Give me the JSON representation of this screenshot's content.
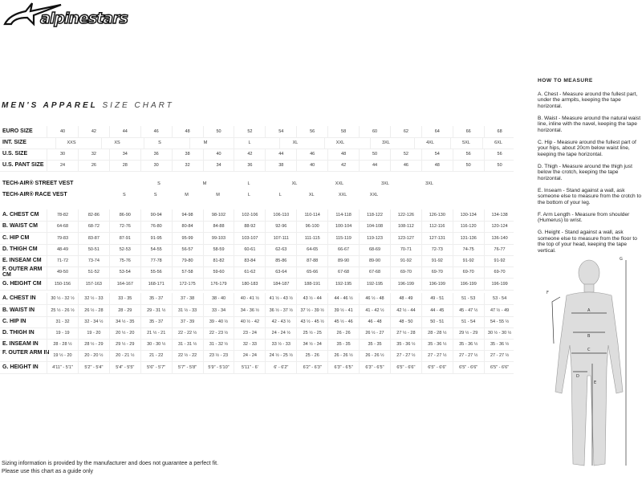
{
  "brand": "alpinestars",
  "title": {
    "bold": "MEN'S APPAREL",
    "light": "SIZE CHART"
  },
  "size_rows": [
    {
      "label": "EURO SIZE",
      "values": [
        "40",
        "42",
        "44",
        "46",
        "48",
        "50",
        "52",
        "54",
        "56",
        "58",
        "60",
        "62",
        "64",
        "66",
        "68"
      ]
    },
    {
      "label": "U.S. SIZE",
      "values": [
        "30",
        "32",
        "34",
        "36",
        "38",
        "40",
        "42",
        "44",
        "46",
        "48",
        "50",
        "52",
        "54",
        "56",
        "56"
      ]
    },
    {
      "label": "U.S. PANT SIZE",
      "values": [
        "24",
        "26",
        "28",
        "30",
        "32",
        "34",
        "36",
        "38",
        "40",
        "42",
        "44",
        "46",
        "48",
        "50",
        "50"
      ]
    }
  ],
  "int_size": {
    "label": "INT. SIZE",
    "values": [
      "XXS",
      "XS",
      "S",
      "M",
      "L",
      "XL",
      "XXL",
      "3XL",
      "4XL",
      "5XL",
      "6XL"
    ]
  },
  "street_vest": {
    "label": "TECH-AIR® STREET VEST",
    "values": [
      "S",
      "M",
      "L",
      "XL",
      "XXL",
      "3XL",
      "3XL"
    ]
  },
  "race_vest": {
    "label": "TECH-AIR® RACE VEST",
    "values": [
      "S",
      "S",
      "M",
      "M",
      "L",
      "L",
      "XL",
      "XXL",
      "XXL"
    ]
  },
  "cm_rows": [
    {
      "label": "A. CHEST CM",
      "values": [
        "78-82",
        "82-86",
        "86-90",
        "90-94",
        "94-98",
        "98-102",
        "102-106",
        "106-110",
        "110-114",
        "114-118",
        "118-122",
        "122-126",
        "126-130",
        "130-134",
        "134-138"
      ]
    },
    {
      "label": "B. WAIST CM",
      "values": [
        "64-68",
        "68-72",
        "72-76",
        "76-80",
        "80-84",
        "84-88",
        "88-92",
        "92-96",
        "96-100",
        "100-104",
        "104-108",
        "108-112",
        "112-116",
        "116-120",
        "120-124"
      ]
    },
    {
      "label": "C. HIP CM",
      "values": [
        "79-83",
        "83-87",
        "87-91",
        "91-95",
        "95-99",
        "99-103",
        "103-107",
        "107-111",
        "111-115",
        "115-119",
        "119-123",
        "123-127",
        "127-131",
        "131-136",
        "136-140"
      ]
    },
    {
      "label": "D. THIGH CM",
      "values": [
        "48-49",
        "50-51",
        "52-53",
        "54-55",
        "56-57",
        "58-59",
        "60-61",
        "62-63",
        "64-65",
        "66-67",
        "68-69",
        "70-71",
        "72-73",
        "74-75",
        "76-77"
      ]
    },
    {
      "label": "E. INSEAM CM",
      "values": [
        "71-72",
        "73-74",
        "75-76",
        "77-78",
        "79-80",
        "81-82",
        "83-84",
        "85-86",
        "87-88",
        "89-90",
        "89-90",
        "91-92",
        "91-92",
        "91-92",
        "91-92"
      ]
    },
    {
      "label": "F. OUTER ARM CM",
      "values": [
        "49-50",
        "51-52",
        "53-54",
        "55-56",
        "57-58",
        "59-60",
        "61-62",
        "63-64",
        "65-66",
        "67-68",
        "67-68",
        "69-70",
        "69-70",
        "69-70",
        "69-70"
      ]
    },
    {
      "label": "G. HEIGHT CM",
      "values": [
        "150-156",
        "157-163",
        "164-167",
        "168-171",
        "172-175",
        "176-179",
        "180-183",
        "184-187",
        "188-191",
        "192-195",
        "192-195",
        "196-199",
        "196-199",
        "196-199",
        "196-199"
      ]
    }
  ],
  "in_rows": [
    {
      "label": "A. CHEST IN",
      "values": [
        "30 ½ - 32 ½",
        "32 ½ - 33",
        "33 - 35",
        "35 - 37",
        "37 - 38",
        "38 - 40",
        "40 - 41 ½",
        "41 ½ - 43 ½",
        "43 ½ - 44",
        "44 - 46 ½",
        "46 ½ - 48",
        "48 - 49",
        "49 - 51",
        "51 - 53",
        "53 - 54"
      ]
    },
    {
      "label": "B. WAIST IN",
      "values": [
        "25 ½ - 26 ½",
        "26 ½ - 28",
        "28 - 29",
        "29 - 31 ½",
        "31 ½ - 33",
        "33 - 34",
        "34 - 36 ½",
        "36 ½ - 37 ½",
        "37 ½ - 39 ½",
        "39 ½ - 41",
        "41 - 42 ½",
        "42 ½ - 44",
        "44 - 45",
        "45 - 47 ½",
        "47 ½ - 49"
      ]
    },
    {
      "label": "C. HIP IN",
      "values": [
        "31 - 32",
        "32 - 34 ½",
        "34 ½ - 35",
        "35 - 37",
        "37 - 39",
        "39 - 40 ½",
        "40 ½ - 42",
        "42 - 43 ½",
        "43 ½ - 45 ½",
        "45 ½ - 46",
        "46 - 48",
        "48 - 50",
        "50 - 51",
        "51 - 54",
        "54 - 55 ½"
      ]
    },
    {
      "label": "D. THIGH IN",
      "values": [
        "19 - 19",
        "19 - 20",
        "20 ½ - 20",
        "21 ½ - 21",
        "22 - 22 ½",
        "22 - 23 ½",
        "23 - 24",
        "24 - 24 ½",
        "25 ½ - 25",
        "26 - 26",
        "26 ½ - 27",
        "27 ½ - 28",
        "28 - 28 ½",
        "29 ½ - 29",
        "30 ½ - 30 ½"
      ]
    },
    {
      "label": "E. INSEAM IN",
      "values": [
        "28 - 28 ½",
        "28 ½ - 29",
        "29 ½ - 29",
        "30 - 30 ½",
        "31 - 31 ½",
        "31 - 32 ½",
        "32 - 33",
        "33 ½ - 33",
        "34 ½ - 34",
        "35 - 35",
        "35 - 35",
        "35 - 36 ½",
        "35 - 36 ½",
        "35 - 36 ½",
        "35 - 36 ½"
      ]
    },
    {
      "label": "F. OUTER ARM IN",
      "values": [
        "19 ½ - 20",
        "20 - 20 ½",
        "20 - 21 ½",
        "21 - 22",
        "22 ½ - 22",
        "23 ½ - 23",
        "24 - 24",
        "24 ½ - 25 ½",
        "25 - 26",
        "26 - 26 ½",
        "26 - 26 ½",
        "27 - 27 ½",
        "27 - 27 ½",
        "27 - 27 ½",
        "27 - 27 ½"
      ]
    },
    {
      "label": "G. HEIGHT IN",
      "values": [
        "4'11\" - 5'1\"",
        "5'2\" - 5'4\"",
        "5'4\" - 5'5\"",
        "5'6\" - 5'7\"",
        "5'7\" - 5'8\"",
        "5'9\" - 5'10\"",
        "5'11\" - 6'",
        "6' - 6'2\"",
        "6'2\" - 6'3\"",
        "6'3\" - 6'5\"",
        "6'3\" - 6'5\"",
        "6'5\" - 6'6\"",
        "6'5\" - 6'6\"",
        "6'5\" - 6'6\"",
        "6'5\" - 6'6\""
      ]
    }
  ],
  "how_to_measure": {
    "title": "HOW TO MEASURE",
    "items": [
      "A. Chest - Measure around the fullest part, under the armpits, keeping the tape horizontal.",
      "B. Waist - Measure around the natural waist line, inline with the navel, keeping the tape horizontal.",
      "C. Hip - Measure around the fullest part of your hips, about 20cm below waist line, keeping the tape horizontal.",
      "D. Thigh - Measure around the thigh just below the crotch, keeping the tape horizontal.",
      "E. Inseam - Stand against a wall, ask someone else to measure from the crotch to the bottom of your leg.",
      "F. Arm Length - Measure from shoulder (Humerus) to wrist.",
      "G. Height - Stand against a wall, ask someone else to measure from the floor to the top of your head, keeping the tape vertical."
    ],
    "figure_labels": [
      "A",
      "B",
      "C",
      "D",
      "E",
      "F",
      "G"
    ]
  },
  "footer": [
    "Sizing information is provided by the manufacturer and does not guarantee a perfect fit.",
    "Please use this chart as a guide only"
  ]
}
